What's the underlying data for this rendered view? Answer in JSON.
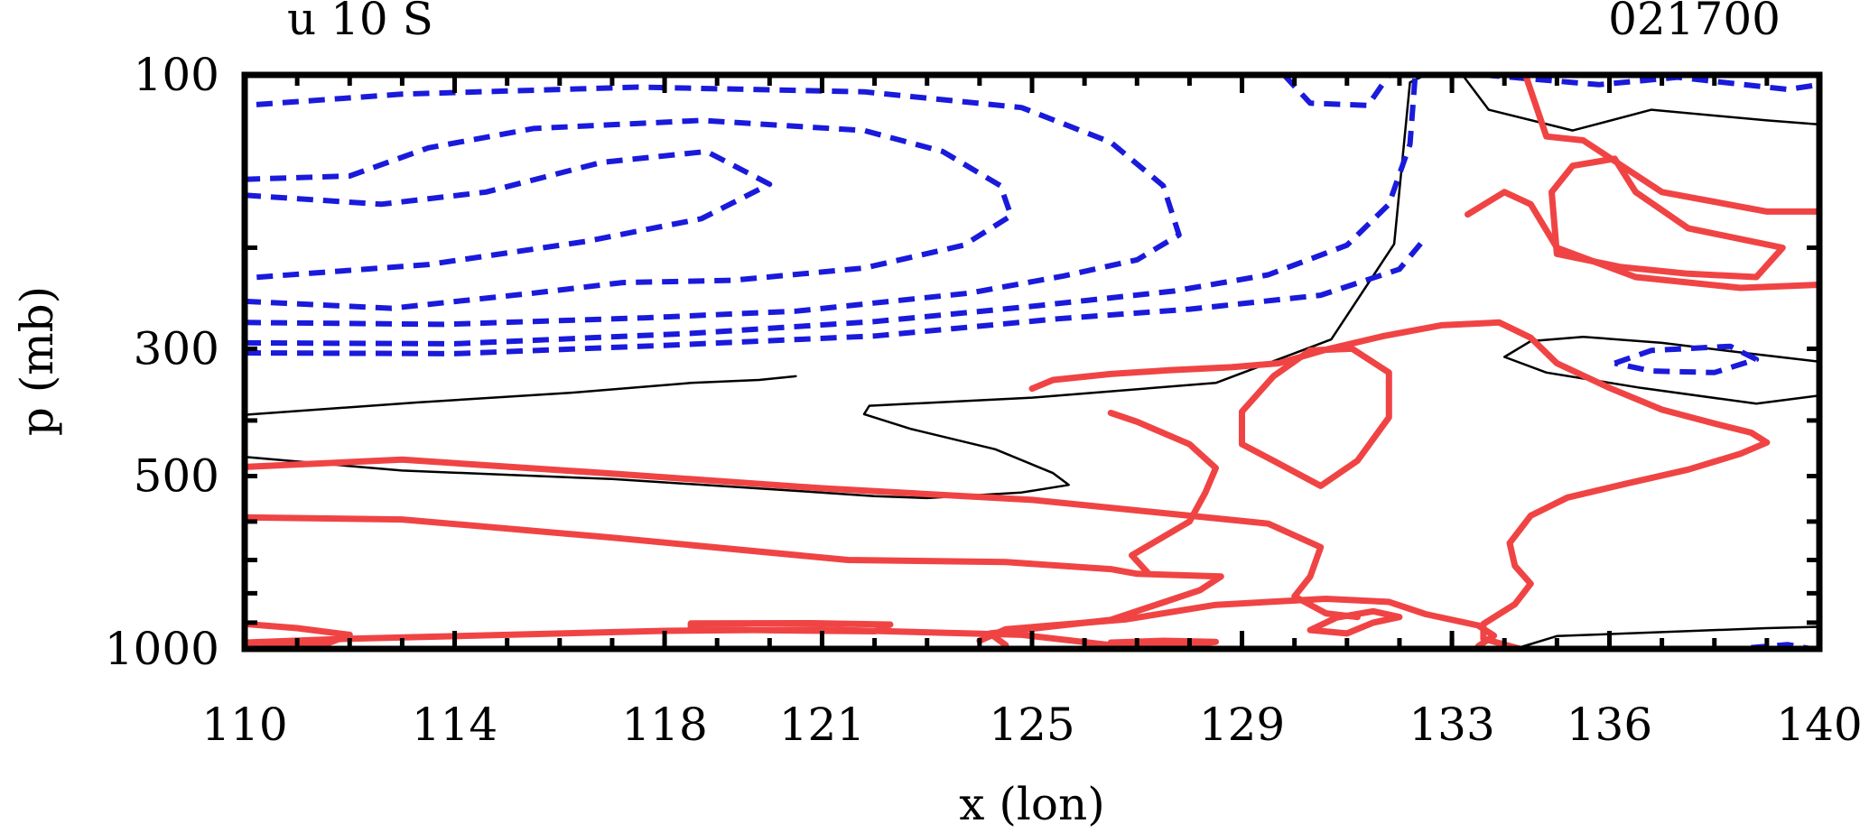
{
  "chart_data": {
    "type": "contour",
    "title_left": "u 10 S",
    "title_right": "021700",
    "xlabel": "x (lon)",
    "ylabel": "p (mb)",
    "xlim": [
      110,
      140
    ],
    "ylim": [
      1000,
      100
    ],
    "x_ticks": [
      "110",
      "114",
      "118",
      "121",
      "125",
      "129",
      "133",
      "136",
      "140"
    ],
    "y_ticks": [
      {
        "p": 100,
        "label": "100"
      },
      {
        "p": 300,
        "label": "300"
      },
      {
        "p": 500,
        "label": "500"
      },
      {
        "p": 1000,
        "label": "1000"
      }
    ],
    "colors": {
      "positive": "#f04444",
      "negative": "#1a1adc",
      "zero": "#000000",
      "frame": "#000000"
    },
    "series": [
      {
        "kind": "zero",
        "points": [
          [
            120.5,
            335
          ],
          [
            119.8,
            340
          ],
          [
            118.5,
            344
          ],
          [
            116.2,
            358
          ],
          [
            113.3,
            372
          ],
          [
            110,
            391
          ]
        ]
      },
      {
        "kind": "zero",
        "points": [
          [
            110,
            463
          ],
          [
            113,
            489
          ],
          [
            117,
            506
          ],
          [
            120.6,
            531
          ],
          [
            122,
            542
          ],
          [
            123,
            546
          ],
          [
            124.8,
            534
          ],
          [
            125.7,
            518
          ],
          [
            125.4,
            494
          ],
          [
            124.3,
            449
          ],
          [
            122.7,
            414
          ],
          [
            121.8,
            390
          ],
          [
            121.9,
            377
          ],
          [
            125.0,
            365
          ],
          [
            128.5,
            344
          ],
          [
            130.7,
            289
          ],
          [
            131.9,
            197
          ],
          [
            132.2,
            103
          ],
          [
            132.5,
            100
          ]
        ]
      },
      {
        "kind": "zero",
        "points": [
          [
            133.2,
            100
          ],
          [
            133.7,
            115
          ],
          [
            135.3,
            125
          ],
          [
            136.8,
            115
          ],
          [
            139,
            120
          ],
          [
            140,
            122
          ]
        ]
      },
      {
        "kind": "zero",
        "points": [
          [
            140,
            362
          ],
          [
            138.8,
            374
          ],
          [
            136.6,
            351
          ],
          [
            134.8,
            330
          ],
          [
            134.0,
            310
          ],
          [
            134.5,
            291
          ],
          [
            135.5,
            286
          ],
          [
            137.0,
            293
          ],
          [
            138.7,
            306
          ],
          [
            140,
            316
          ]
        ]
      },
      {
        "kind": "zero",
        "points": [
          [
            134.2,
            1000
          ],
          [
            135.0,
            950
          ],
          [
            137.0,
            935
          ],
          [
            139.0,
            920
          ],
          [
            140,
            915
          ]
        ]
      },
      {
        "kind": "negative",
        "points": [
          [
            110,
            162
          ],
          [
            112.6,
            168
          ],
          [
            114.6,
            160
          ],
          [
            116.8,
            142
          ],
          [
            118.8,
            136
          ],
          [
            120,
            155
          ],
          [
            118.7,
            178
          ],
          [
            116.5,
            195
          ],
          [
            113.5,
            214
          ],
          [
            110,
            226
          ]
        ]
      },
      {
        "kind": "negative",
        "points": [
          [
            110,
            248
          ],
          [
            112.8,
            255
          ],
          [
            115.5,
            240
          ],
          [
            117.2,
            230
          ],
          [
            119.3,
            228
          ],
          [
            121.8,
            217
          ],
          [
            123.7,
            198
          ],
          [
            124.6,
            176
          ],
          [
            124.4,
            156
          ],
          [
            123.3,
            136
          ],
          [
            121.8,
            125
          ],
          [
            118.7,
            120
          ],
          [
            115.5,
            124
          ],
          [
            113.5,
            134
          ],
          [
            112.0,
            150
          ],
          [
            110,
            152
          ]
        ]
      },
      {
        "kind": "negative",
        "points": [
          [
            110,
            270
          ],
          [
            113.8,
            272
          ],
          [
            117.6,
            265
          ],
          [
            120.5,
            258
          ],
          [
            123.8,
            240
          ],
          [
            125.6,
            224
          ],
          [
            127.0,
            210
          ],
          [
            127.8,
            190
          ],
          [
            127.5,
            156
          ],
          [
            126.5,
            131
          ],
          [
            124.8,
            114
          ],
          [
            121.8,
            107
          ],
          [
            117.5,
            105
          ],
          [
            113.0,
            108
          ],
          [
            110,
            113
          ]
        ]
      },
      {
        "kind": "negative",
        "points": [
          [
            110,
            293
          ],
          [
            114,
            294
          ],
          [
            118.5,
            282
          ],
          [
            122,
            269
          ],
          [
            125,
            253
          ],
          [
            127.7,
            238
          ],
          [
            129.5,
            223
          ],
          [
            131.0,
            198
          ],
          [
            131.8,
            168
          ],
          [
            132.2,
            132
          ],
          [
            132.3,
            100
          ]
        ]
      },
      {
        "kind": "negative",
        "points": [
          [
            110,
            305
          ],
          [
            114,
            306
          ],
          [
            118,
            296
          ],
          [
            122,
            285
          ],
          [
            125.5,
            266
          ],
          [
            128.0,
            256
          ],
          [
            130.5,
            242
          ],
          [
            132.0,
            218
          ],
          [
            132.5,
            192
          ]
        ]
      },
      {
        "kind": "negative",
        "points": [
          [
            129.8,
            100
          ],
          [
            130.3,
            112
          ],
          [
            131.4,
            113
          ],
          [
            131.8,
            100
          ]
        ]
      },
      {
        "kind": "negative",
        "points": [
          [
            133.6,
            100
          ],
          [
            135.8,
            104
          ],
          [
            137.3,
            101
          ],
          [
            139.4,
            106
          ],
          [
            140,
            104
          ]
        ]
      },
      {
        "kind": "negative",
        "points": [
          [
            136.1,
            318
          ],
          [
            136.8,
            302
          ],
          [
            138.3,
            297
          ],
          [
            138.8,
            313
          ],
          [
            138.0,
            330
          ],
          [
            136.8,
            328
          ],
          [
            136.1,
            318
          ]
        ]
      },
      {
        "kind": "negative",
        "points": [
          [
            138.7,
            995
          ],
          [
            139.4,
            983
          ],
          [
            139.8,
            998
          ]
        ]
      },
      {
        "kind": "positive",
        "points": [
          [
            110,
            482
          ],
          [
            113,
            468
          ],
          [
            117,
            495
          ],
          [
            121,
            525
          ],
          [
            125,
            550
          ],
          [
            128,
            586
          ],
          [
            129.5,
            605
          ],
          [
            130.5,
            665
          ],
          [
            130.3,
            748
          ],
          [
            130.0,
            810
          ],
          [
            130.6,
            867
          ],
          [
            131.2,
            880
          ]
        ]
      },
      {
        "kind": "positive",
        "points": [
          [
            110,
            590
          ],
          [
            113,
            595
          ],
          [
            117,
            640
          ],
          [
            121.5,
            700
          ],
          [
            124.5,
            706
          ],
          [
            126.5,
            726
          ],
          [
            127.0,
            740
          ],
          [
            128.6,
            748
          ],
          [
            128.2,
            790
          ],
          [
            127.5,
            830
          ],
          [
            126.5,
            890
          ],
          [
            125.8,
            905
          ],
          [
            124.2,
            940
          ],
          [
            124.5,
            985
          ]
        ]
      },
      {
        "kind": "positive",
        "points": [
          [
            110,
            1000
          ],
          [
            111.5,
            985
          ],
          [
            112.0,
            945
          ],
          [
            111.0,
            920
          ],
          [
            110,
            905
          ]
        ]
      },
      {
        "kind": "positive",
        "points": [
          [
            110,
            975
          ],
          [
            112,
            960
          ],
          [
            115.0,
            945
          ],
          [
            118,
            930
          ],
          [
            121,
            925
          ],
          [
            124.8,
            945
          ],
          [
            126.5,
            985
          ]
        ]
      },
      {
        "kind": "positive",
        "points": [
          [
            124.0,
            968
          ],
          [
            124.5,
            924
          ],
          [
            126.8,
            888
          ],
          [
            128.5,
            838
          ],
          [
            130.6,
            818
          ],
          [
            131.8,
            828
          ],
          [
            132.5,
            870
          ],
          [
            133.5,
            910
          ],
          [
            133.8,
            948
          ],
          [
            133.5,
            990
          ]
        ]
      },
      {
        "kind": "positive",
        "points": [
          [
            125.0,
            352
          ],
          [
            125.4,
            340
          ],
          [
            126.5,
            332
          ],
          [
            127.6,
            327
          ],
          [
            128.8,
            323
          ],
          [
            129.7,
            318
          ],
          [
            130.6,
            301
          ],
          [
            131.7,
            285
          ],
          [
            132.8,
            273
          ],
          [
            133.9,
            270
          ],
          [
            134.5,
            287
          ],
          [
            135.0,
            318
          ],
          [
            136.0,
            351
          ],
          [
            137.0,
            383
          ],
          [
            138.0,
            405
          ],
          [
            138.7,
            420
          ],
          [
            139.0,
            437
          ],
          [
            138.5,
            457
          ],
          [
            137.5,
            487
          ],
          [
            136.3,
            516
          ],
          [
            135.2,
            545
          ],
          [
            134.5,
            586
          ],
          [
            134.1,
            654
          ],
          [
            134.2,
            717
          ],
          [
            134.5,
            770
          ],
          [
            134.2,
            836
          ],
          [
            133.6,
            905
          ],
          [
            133.6,
            960
          ],
          [
            134.3,
            1000
          ]
        ]
      },
      {
        "kind": "positive",
        "points": [
          [
            126.5,
            388
          ],
          [
            127.0,
            402
          ],
          [
            128.0,
            440
          ],
          [
            128.5,
            484
          ],
          [
            128.3,
            535
          ],
          [
            128.0,
            600
          ],
          [
            126.9,
            687
          ],
          [
            127.2,
            736
          ]
        ]
      },
      {
        "kind": "positive",
        "points": [
          [
            131.0,
            940
          ],
          [
            131.5,
            900
          ],
          [
            132.0,
            880
          ],
          [
            131.5,
            860
          ],
          [
            130.8,
            882
          ],
          [
            130.3,
            927
          ],
          [
            131.0,
            940
          ]
        ]
      },
      {
        "kind": "positive",
        "points": [
          [
            130.5,
            520
          ],
          [
            131.2,
            470
          ],
          [
            131.8,
            395
          ],
          [
            131.8,
            330
          ],
          [
            131.1,
            300
          ],
          [
            130.3,
            302
          ],
          [
            129.6,
            335
          ],
          [
            129.0,
            386
          ],
          [
            129.0,
            440
          ],
          [
            129.6,
            470
          ],
          [
            130.5,
            520
          ]
        ]
      },
      {
        "kind": "positive",
        "points": [
          [
            134.9,
            160
          ],
          [
            135.3,
            144
          ],
          [
            136.1,
            140
          ],
          [
            136.5,
            160
          ],
          [
            137.5,
            185
          ],
          [
            139.3,
            200
          ],
          [
            138.8,
            225
          ],
          [
            137.5,
            222
          ],
          [
            136.2,
            216
          ],
          [
            135.0,
            205
          ],
          [
            134.9,
            160
          ]
        ]
      },
      {
        "kind": "positive",
        "points": [
          [
            134.4,
            100
          ],
          [
            134.8,
            128
          ],
          [
            135.5,
            130
          ],
          [
            137.0,
            160
          ],
          [
            139.0,
            173
          ],
          [
            140,
            173
          ]
        ]
      },
      {
        "kind": "positive",
        "points": [
          [
            133.3,
            175
          ],
          [
            134.0,
            160
          ],
          [
            134.5,
            168
          ],
          [
            135.0,
            200
          ],
          [
            136.5,
            225
          ],
          [
            138.5,
            235
          ],
          [
            140,
            232
          ]
        ]
      },
      {
        "kind": "positive",
        "points": [
          [
            118.5,
            903
          ],
          [
            120.8,
            902
          ],
          [
            122.3,
            907
          ],
          [
            122.0,
            932
          ],
          [
            120,
            928
          ],
          [
            118.5,
            922
          ],
          [
            118.5,
            903
          ]
        ]
      },
      {
        "kind": "positive",
        "points": [
          [
            126.5,
            975
          ],
          [
            127.5,
            968
          ],
          [
            128.5,
            972
          ],
          [
            128.0,
            985
          ],
          [
            127.0,
            985
          ],
          [
            126.5,
            975
          ]
        ]
      }
    ]
  }
}
